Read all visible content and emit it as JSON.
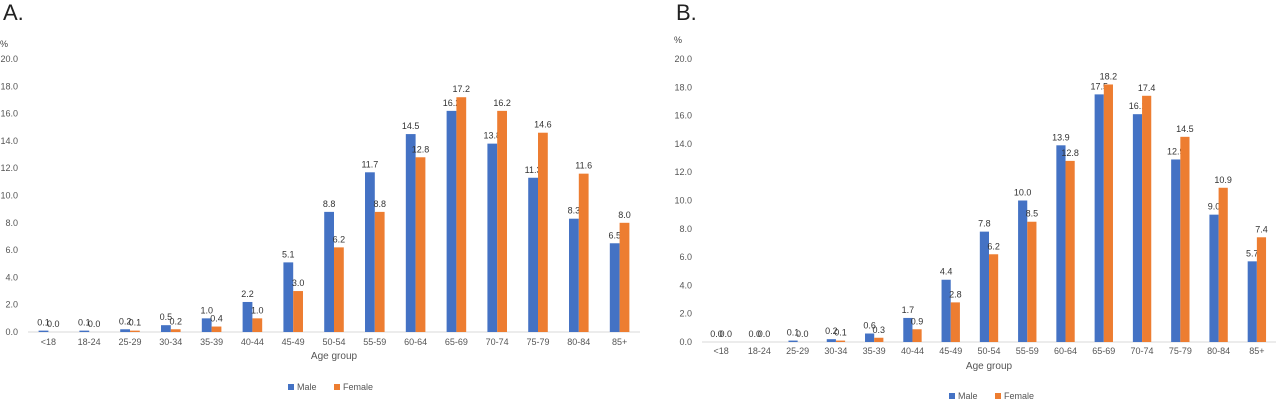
{
  "chart_data": [
    {
      "panel_label": "A.",
      "type": "bar",
      "unit_label": "%",
      "xlabel": "Age group",
      "ylim": [
        0,
        20
      ],
      "yticks": [
        "0.0",
        "2.0",
        "4.0",
        "6.0",
        "8.0",
        "10.0",
        "12.0",
        "14.0",
        "16.0",
        "18.0",
        "20.0"
      ],
      "categories": [
        "<18",
        "18-24",
        "25-29",
        "30-34",
        "35-39",
        "40-44",
        "45-49",
        "50-54",
        "55-59",
        "60-64",
        "65-69",
        "70-74",
        "75-79",
        "80-84",
        "85+"
      ],
      "series": [
        {
          "name": "Male",
          "color": "#4472C4",
          "values": [
            0.1,
            0.1,
            0.2,
            0.5,
            1.0,
            2.2,
            5.1,
            8.8,
            11.7,
            14.5,
            16.2,
            13.8,
            11.3,
            8.3,
            6.5
          ]
        },
        {
          "name": "Female",
          "color": "#ED7D31",
          "values": [
            0.0,
            0.0,
            0.1,
            0.2,
            0.4,
            1.0,
            3.0,
            6.2,
            8.8,
            12.8,
            17.2,
            16.2,
            14.6,
            11.6,
            8.0
          ]
        }
      ],
      "legend": "bottom",
      "grid": false
    },
    {
      "panel_label": "B.",
      "type": "bar",
      "unit_label": "%",
      "xlabel": "Age group",
      "ylim": [
        0,
        20
      ],
      "yticks": [
        "0.0",
        "2.0",
        "4.0",
        "6.0",
        "8.0",
        "10.0",
        "12.0",
        "14.0",
        "16.0",
        "18.0",
        "20.0"
      ],
      "categories": [
        "<18",
        "18-24",
        "25-29",
        "30-34",
        "35-39",
        "40-44",
        "45-49",
        "50-54",
        "55-59",
        "60-64",
        "65-69",
        "70-74",
        "75-79",
        "80-84",
        "85+"
      ],
      "series": [
        {
          "name": "Male",
          "color": "#4472C4",
          "values": [
            0.0,
            0.0,
            0.1,
            0.2,
            0.6,
            1.7,
            4.4,
            7.8,
            10.0,
            13.9,
            17.5,
            16.1,
            12.9,
            9.0,
            5.7
          ]
        },
        {
          "name": "Female",
          "color": "#ED7D31",
          "values": [
            0.0,
            0.0,
            0.0,
            0.1,
            0.3,
            0.9,
            2.8,
            6.2,
            8.5,
            12.8,
            18.2,
            17.4,
            14.5,
            10.9,
            7.4
          ]
        }
      ],
      "legend": "bottom",
      "grid": false
    }
  ]
}
